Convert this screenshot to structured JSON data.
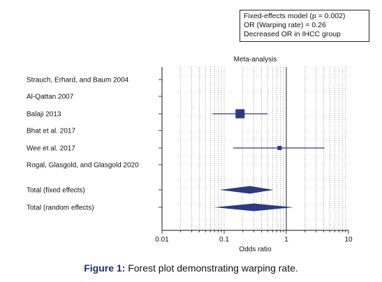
{
  "chart_data": {
    "type": "forest",
    "title": "Meta-analysis",
    "xlabel": "Odds ratio",
    "x_scale": "log",
    "xlim": [
      0.01,
      10
    ],
    "x_ticks": [
      "0.01",
      "0.1",
      "1",
      "10"
    ],
    "reference_line": 1,
    "grid": "vertical dotted",
    "studies": [
      {
        "label": "Strauch, Erhard, and Baum 2004",
        "or": null,
        "ci": null,
        "weight": null
      },
      {
        "label": "Al-Qattan 2007",
        "or": null,
        "ci": null,
        "weight": null
      },
      {
        "label": "Balaji 2013",
        "or": 0.18,
        "ci": [
          0.065,
          0.5
        ],
        "weight": "large"
      },
      {
        "label": "Bhat et al. 2017",
        "or": null,
        "ci": null,
        "weight": null
      },
      {
        "label": "Wee et al. 2017",
        "or": 0.78,
        "ci": [
          0.14,
          4.1
        ],
        "weight": "small"
      },
      {
        "label": "Rogal, Glasgold, and Glasgold 2020",
        "or": null,
        "ci": null,
        "weight": null
      }
    ],
    "pooled": [
      {
        "label": "Total (fixed effects)",
        "or": 0.26,
        "ci": [
          0.085,
          0.62
        ]
      },
      {
        "label": "Total (random effects)",
        "or": 0.3,
        "ci": [
          0.07,
          1.3
        ]
      }
    ],
    "annotation": [
      "Fixed-effects model (p = 0.002)",
      "OR (Warping rate) = 0.26",
      "Decreased OR in IHCC group"
    ],
    "colors": {
      "marker": "#2b3a83",
      "axis": "#111111",
      "grid": "#555555"
    }
  },
  "caption": {
    "prefix": "Figure 1:",
    "text": " Forest plot demonstrating warping rate."
  }
}
